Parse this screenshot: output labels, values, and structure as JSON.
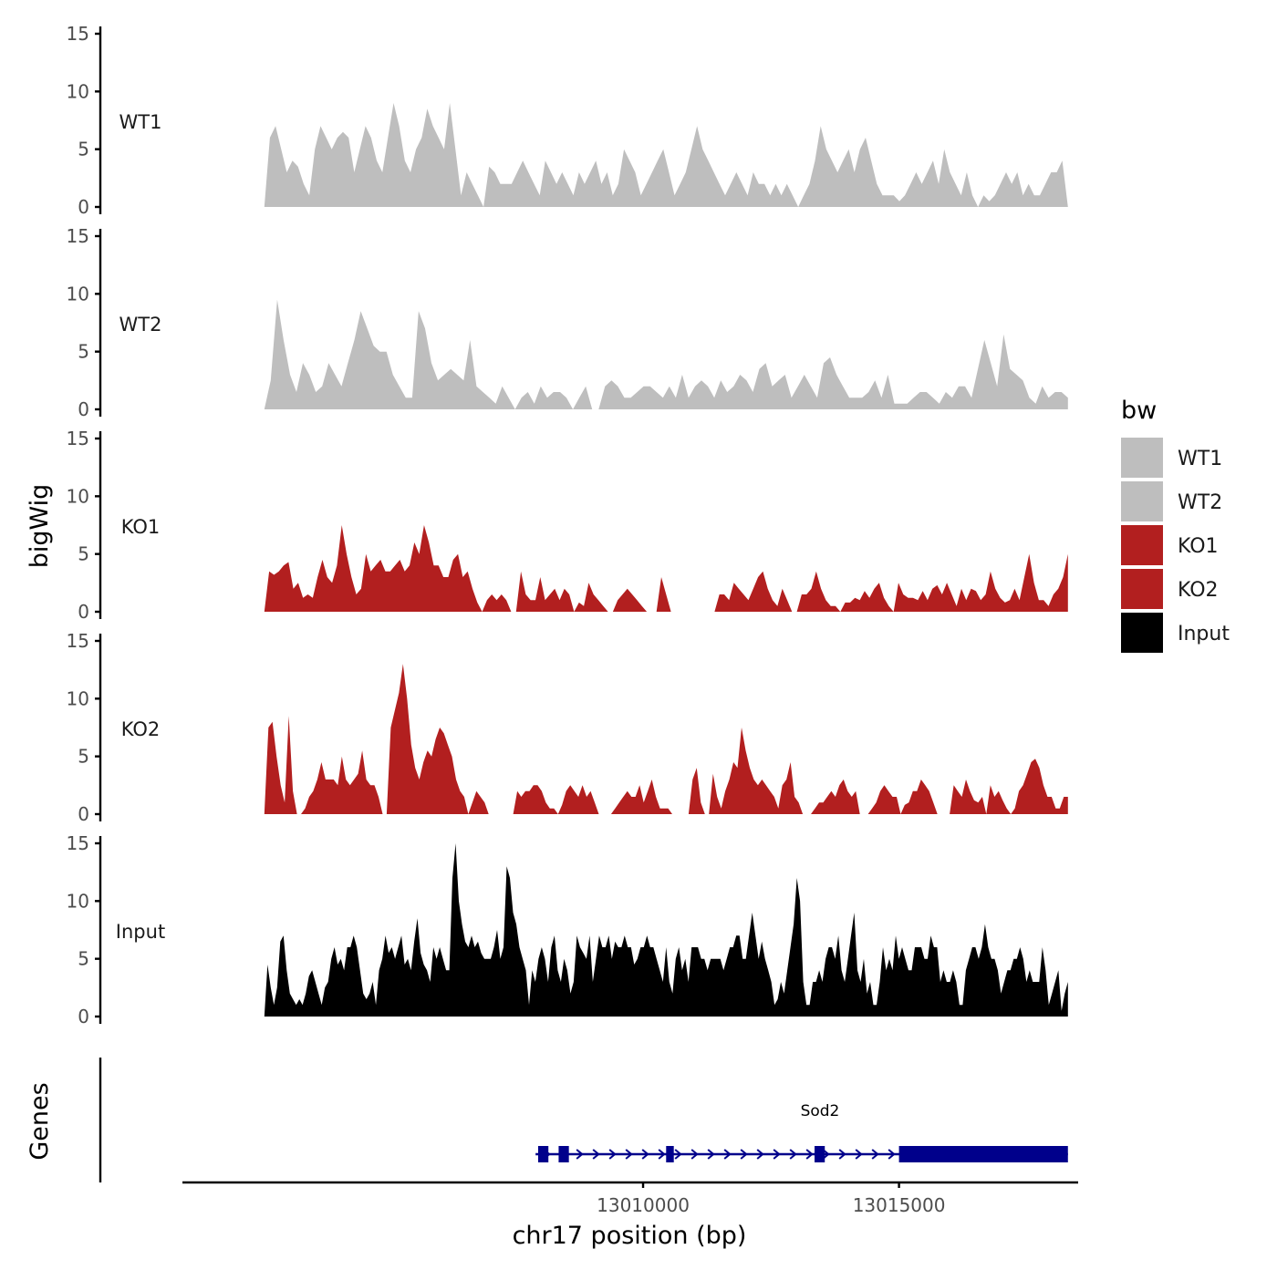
{
  "chart_data": {
    "type": "area",
    "chromosome": "chr17",
    "xlabel": "chr17 position (bp)",
    "ylabel": "bigWig",
    "genes_label": "Genes",
    "x_range": [
      13001000,
      13018500
    ],
    "x_ticks": [
      {
        "value": 13010000,
        "label": "13010000"
      },
      {
        "value": 13015000,
        "label": "13015000"
      }
    ],
    "ylim": [
      0,
      15
    ],
    "y_ticks": [
      {
        "value": 0,
        "label": "0"
      },
      {
        "value": 5,
        "label": "5"
      },
      {
        "value": 10,
        "label": "10"
      },
      {
        "value": 15,
        "label": "15"
      }
    ],
    "legend": {
      "title": "bw",
      "entries": [
        {
          "label": "WT1",
          "color": "#bebebe"
        },
        {
          "label": "WT2",
          "color": "#bebebe"
        },
        {
          "label": "KO1",
          "color": "#b21f1f"
        },
        {
          "label": "KO2",
          "color": "#b21f1f"
        },
        {
          "label": "Input",
          "color": "#000000"
        }
      ]
    },
    "series": [
      {
        "name": "WT1",
        "color": "#bebebe",
        "x_start": 13002600,
        "x_end": 13018300,
        "values": [
          0,
          6,
          7,
          5,
          3,
          4,
          3.5,
          2,
          1,
          5,
          7,
          6,
          5,
          6,
          6.5,
          6,
          3,
          5,
          7,
          6,
          4,
          3,
          6,
          9,
          7,
          4,
          3,
          5,
          6,
          8.5,
          7,
          6,
          5,
          9,
          5,
          1,
          3,
          2,
          1,
          0,
          3.5,
          3,
          2,
          2,
          2,
          3,
          4,
          3,
          2,
          1,
          4,
          3,
          2,
          3,
          2,
          1,
          3,
          2,
          3,
          4,
          2,
          3,
          1,
          2,
          5,
          4,
          3,
          1,
          2,
          3,
          4,
          5,
          3,
          1,
          2,
          3,
          5,
          7,
          5,
          4,
          3,
          2,
          1,
          2,
          3,
          2,
          1,
          3,
          2,
          2,
          1,
          2,
          1,
          2,
          1,
          0,
          1,
          2,
          4,
          7,
          5,
          4,
          3,
          4,
          5,
          3,
          5,
          6,
          4,
          2,
          1,
          1,
          1,
          0.5,
          1,
          2,
          3,
          2,
          3,
          4,
          2,
          5,
          3,
          2,
          1,
          3,
          1,
          0,
          1,
          0.5,
          1,
          2,
          3,
          2,
          3,
          1,
          2,
          1,
          1,
          2,
          3,
          3,
          4,
          0
        ]
      },
      {
        "name": "WT2",
        "color": "#bebebe",
        "x_start": 13002600,
        "x_end": 13018300,
        "values": [
          0,
          2.5,
          9.5,
          6,
          3,
          1.5,
          4,
          3,
          1.5,
          2,
          4,
          3,
          2,
          4,
          6,
          8.5,
          7,
          5.5,
          5,
          5,
          3,
          2,
          1,
          1,
          8.5,
          7,
          4,
          2.5,
          3,
          3.5,
          3,
          2.5,
          6,
          2,
          1.5,
          1,
          0.5,
          2,
          1,
          0,
          1,
          1.5,
          0.5,
          2,
          1,
          1.5,
          1.5,
          1,
          0,
          1,
          2,
          0,
          0,
          2,
          2.5,
          2,
          1,
          1,
          1.5,
          2,
          2,
          1.5,
          1,
          2,
          1,
          3,
          1,
          2,
          2.5,
          2,
          1,
          2.5,
          1.5,
          2,
          3,
          2.5,
          1.5,
          3.5,
          4,
          2,
          2.5,
          3,
          1,
          2,
          3,
          2,
          1,
          4,
          4.5,
          3,
          2,
          1,
          1,
          1,
          1.5,
          2.5,
          1,
          3,
          0.5,
          0.5,
          0.5,
          1,
          1.5,
          1.5,
          1,
          0.5,
          1.5,
          1,
          2,
          2,
          1,
          3.5,
          6,
          4,
          2,
          6.5,
          3.5,
          3,
          2.5,
          1,
          0.5,
          2,
          1,
          1.5,
          1.5,
          1
        ]
      },
      {
        "name": "KO1",
        "color": "#b21f1f",
        "x_start": 13002600,
        "x_end": 13018300,
        "values": [
          0,
          3.5,
          3.2,
          3.5,
          4,
          4.3,
          2,
          2.5,
          1.2,
          1.5,
          1.2,
          3,
          4.5,
          3,
          2.5,
          4,
          7.5,
          5,
          3,
          1.5,
          2,
          5,
          3.5,
          4,
          4.5,
          3.5,
          3.5,
          4,
          4.5,
          3.5,
          4,
          6,
          5,
          7.5,
          6,
          4,
          4,
          3,
          3,
          4.5,
          5,
          3,
          3.5,
          2,
          0.8,
          0,
          1,
          1.5,
          1,
          1.5,
          1,
          0,
          0,
          3.5,
          1.5,
          1,
          1,
          3,
          1,
          1.5,
          2,
          1,
          2,
          1.5,
          0,
          0.8,
          0.5,
          2.5,
          1.5,
          1,
          0.5,
          0,
          0,
          1,
          1.5,
          2,
          1.5,
          1,
          0.5,
          0,
          0,
          0,
          3,
          1.5,
          0,
          0,
          0,
          0,
          0,
          0,
          0,
          0,
          0,
          0,
          1.5,
          1.5,
          1,
          2.5,
          2,
          1.5,
          1,
          2,
          3,
          3.5,
          2,
          1,
          0.5,
          2,
          1,
          0,
          0,
          1.5,
          1.5,
          2,
          3.5,
          2,
          1,
          0.5,
          0.5,
          0,
          0.8,
          0.8,
          1.2,
          1,
          1.8,
          1.2,
          2,
          2.5,
          1.2,
          0.5,
          0,
          2.5,
          1.5,
          1.2,
          1.2,
          1,
          1.8,
          1,
          2,
          2.3,
          1.5,
          2.5,
          1.5,
          0.5,
          2,
          1,
          2,
          1.8,
          1,
          1.5,
          3.5,
          2,
          1.2,
          0.8,
          1,
          2,
          1,
          3,
          5,
          2.5,
          1,
          1,
          0.5,
          1.5,
          2,
          3,
          5
        ]
      },
      {
        "name": "KO2",
        "color": "#b21f1f",
        "x_start": 13002600,
        "x_end": 13018300,
        "values": [
          0,
          7.5,
          8,
          5,
          2.5,
          1,
          8.5,
          2,
          0,
          0,
          0.5,
          1.5,
          2,
          3,
          4.5,
          3,
          3,
          3,
          2.5,
          5,
          3,
          2.5,
          3,
          3.5,
          5.5,
          3,
          2.5,
          2.5,
          1.5,
          0,
          0,
          7.5,
          9,
          10.5,
          13,
          10,
          6,
          4,
          3,
          4.5,
          5.5,
          5,
          6.5,
          7.5,
          7,
          6,
          5,
          3,
          2,
          1.5,
          0,
          1,
          2,
          1.5,
          1,
          0,
          0,
          0,
          0,
          0,
          0,
          0,
          2,
          1.5,
          2,
          2,
          2.5,
          2.5,
          2,
          1,
          0.5,
          0.5,
          0,
          0.8,
          2,
          2.5,
          2,
          1.5,
          2.5,
          1.5,
          2,
          1,
          0,
          0,
          0,
          0,
          0.5,
          1,
          1.5,
          2,
          1.5,
          1.5,
          2.5,
          1,
          2,
          3,
          1.5,
          0.5,
          0.5,
          0.5,
          0,
          0,
          0,
          0,
          0,
          3,
          4,
          1,
          0,
          0,
          3.5,
          1.5,
          0.5,
          2,
          3,
          4.5,
          4,
          7.5,
          5.5,
          4,
          3,
          2.5,
          3,
          2.5,
          2,
          1.5,
          0.5,
          2.5,
          3,
          4.5,
          1.5,
          1,
          0,
          0,
          0,
          0.5,
          1,
          1,
          1.5,
          2,
          1.5,
          2.5,
          3,
          2,
          1.5,
          2,
          0,
          0,
          0,
          0.5,
          1,
          2,
          2.5,
          2,
          1.5,
          1.5,
          0,
          0.8,
          1,
          2,
          2,
          3,
          2.5,
          2,
          1,
          0,
          0,
          0,
          0,
          2.5,
          2,
          1.5,
          3,
          2,
          1.2,
          1,
          1.5,
          0,
          2.5,
          1.5,
          2,
          1.2,
          0.5,
          0,
          0.5,
          2,
          2.5,
          3.5,
          4.5,
          4.8,
          4,
          2.5,
          1.5,
          1.5,
          0.5,
          0.5,
          1.5,
          1.5
        ]
      },
      {
        "name": "Input",
        "color": "#000000",
        "x_start": 13002600,
        "x_end": 13018300,
        "values": [
          0,
          4.5,
          2.5,
          1,
          2.5,
          6.5,
          7,
          4,
          2,
          1.5,
          1,
          1.5,
          1,
          2,
          3.5,
          4,
          3,
          2,
          1,
          2.5,
          3,
          5,
          6,
          4.5,
          5,
          4,
          6,
          6,
          7,
          6,
          4,
          2,
          1.5,
          2,
          3,
          1,
          4,
          5,
          7,
          5.5,
          6,
          5,
          6,
          7,
          4.5,
          5,
          4,
          6.5,
          8.5,
          5.5,
          4.5,
          4,
          3,
          6,
          5,
          6,
          5,
          4,
          4,
          12,
          15,
          10,
          8,
          6.5,
          6,
          7,
          6,
          6.5,
          5.5,
          5,
          5,
          5,
          6,
          7.5,
          5,
          6,
          13,
          12,
          9,
          8,
          6,
          5,
          4,
          1,
          4,
          3,
          5,
          6,
          5,
          3,
          6,
          7,
          4,
          3,
          5,
          4,
          2,
          3,
          7,
          6,
          5.5,
          5,
          7,
          3,
          5,
          7,
          6,
          6,
          7,
          5,
          6.5,
          6,
          6,
          7,
          6,
          6,
          4.5,
          5,
          6,
          6,
          7,
          6,
          6,
          5,
          4,
          3,
          6,
          3,
          2,
          5,
          6,
          4,
          5,
          3,
          6,
          6,
          6,
          5,
          5,
          4,
          5,
          5,
          5,
          5,
          4,
          5,
          6,
          6,
          7,
          7,
          5,
          5,
          7,
          9,
          7,
          5,
          6.5,
          5,
          4,
          3,
          1,
          1.5,
          3,
          2,
          4,
          6,
          8,
          12,
          10,
          3,
          1,
          1,
          3,
          3,
          4,
          3,
          5,
          6,
          6,
          5,
          7,
          4,
          3,
          5,
          7,
          9,
          4,
          3,
          5,
          2,
          3,
          1,
          1,
          3,
          6,
          4,
          5,
          4,
          7,
          5,
          6,
          5,
          4,
          4,
          6,
          6,
          6,
          5,
          5,
          7,
          6,
          6,
          3,
          4,
          3,
          3,
          4,
          3,
          1,
          1,
          4,
          5,
          6,
          6,
          5,
          6,
          8,
          6,
          5,
          5,
          4,
          2,
          3,
          4,
          4,
          5,
          5,
          6,
          5,
          3,
          4,
          3,
          3,
          3,
          6,
          4,
          1,
          2,
          3,
          4,
          0.5,
          2,
          3
        ]
      }
    ],
    "genes": [
      {
        "name": "Sod2",
        "strand": "+",
        "start": 13007900,
        "end": 13018300,
        "exons": [
          [
            13007950,
            13008150
          ],
          [
            13008350,
            13008550
          ],
          [
            13010450,
            13010600
          ],
          [
            13013350,
            13013550
          ],
          [
            13015000,
            13018300
          ]
        ]
      }
    ]
  }
}
